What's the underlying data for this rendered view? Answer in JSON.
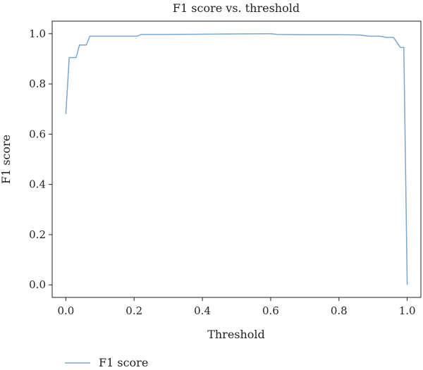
{
  "chart_data": {
    "type": "line",
    "title": "F1 score vs. threshold",
    "xlabel": "Threshold",
    "ylabel": "F1 score",
    "xlim": [
      -0.04,
      1.04
    ],
    "ylim": [
      -0.05,
      1.05
    ],
    "x_ticks": [
      0.0,
      0.2,
      0.4,
      0.6,
      0.8,
      1.0
    ],
    "x_tick_labels": [
      "0.0",
      "0.2",
      "0.4",
      "0.6",
      "0.8",
      "1.0"
    ],
    "y_ticks": [
      0.0,
      0.2,
      0.4,
      0.6,
      0.8,
      1.0
    ],
    "y_tick_labels": [
      "0.0",
      "0.2",
      "0.4",
      "0.6",
      "0.8",
      "1.0"
    ],
    "grid": false,
    "legend_position": "bottom-left, below plot",
    "series": [
      {
        "name": "F1 score",
        "color": "#7aa6cf",
        "x": [
          0.0,
          0.01,
          0.03,
          0.04,
          0.06,
          0.07,
          0.1,
          0.15,
          0.21,
          0.22,
          0.3,
          0.4,
          0.5,
          0.6,
          0.62,
          0.7,
          0.8,
          0.86,
          0.89,
          0.9,
          0.92,
          0.94,
          0.95,
          0.96,
          0.98,
          0.99,
          1.0
        ],
        "y": [
          0.68,
          0.905,
          0.905,
          0.955,
          0.955,
          0.99,
          0.99,
          0.99,
          0.99,
          0.997,
          0.997,
          0.998,
          0.999,
          1.0,
          0.997,
          0.996,
          0.996,
          0.995,
          0.99,
          0.99,
          0.99,
          0.985,
          0.985,
          0.985,
          0.945,
          0.945,
          0.0
        ]
      }
    ]
  }
}
